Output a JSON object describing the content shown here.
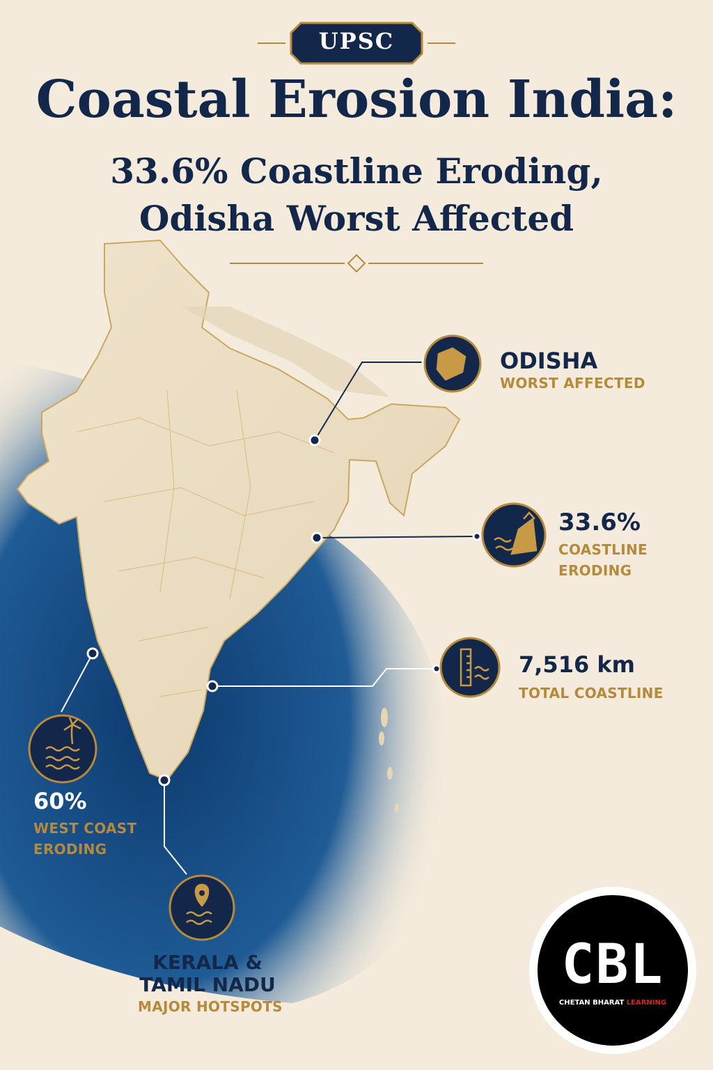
{
  "badge": "UPSC",
  "title": "Coastal Erosion India:",
  "subtitle": [
    "33.6% Coastline Eroding,",
    "Odisha Worst Affected"
  ],
  "callouts": [
    {
      "headline": [
        "ODISHA"
      ],
      "caption": [
        "WORST AFFECTED"
      ]
    },
    {
      "headline": [
        "33.6%"
      ],
      "caption": [
        "COASTLINE",
        "ERODING"
      ]
    },
    {
      "headline": [
        "7,516 km"
      ],
      "caption": [
        "TOTAL COASTLINE"
      ]
    },
    {
      "headline": [
        "60%"
      ],
      "caption": [
        "WEST COAST",
        "ERODING"
      ]
    },
    {
      "headline": [
        "KERALA &",
        "TAMIL NADU"
      ],
      "caption": [
        "MAJOR HOTSPOTS"
      ]
    }
  ],
  "logo": {
    "mark": "CBL",
    "name": "CHETAN BHARAT",
    "name_accent": "LEARNING"
  }
}
